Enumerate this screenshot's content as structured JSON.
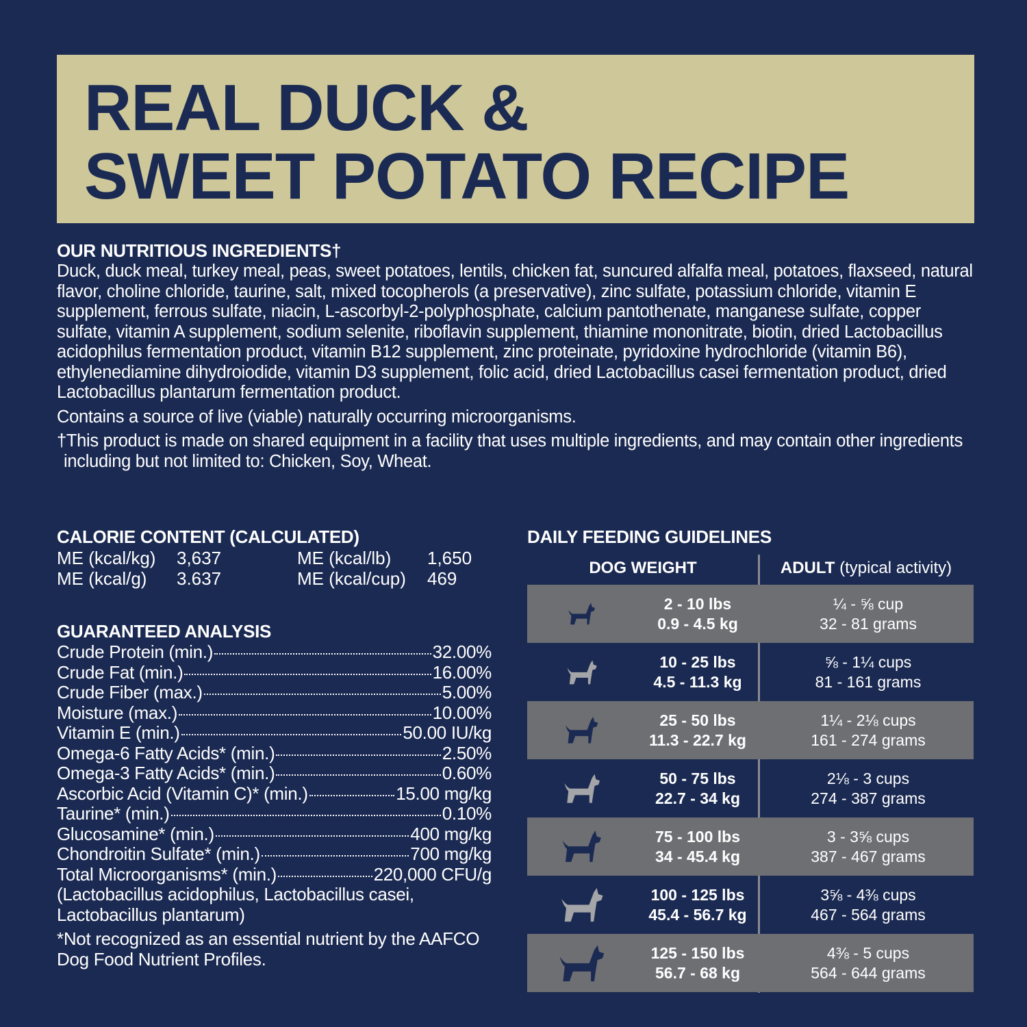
{
  "title": {
    "line1": "REAL DUCK &",
    "line2": "SWEET POTATO RECIPE"
  },
  "ingredients": {
    "heading": "OUR NUTRITIOUS INGREDIENTS†",
    "text": "Duck, duck meal, turkey meal, peas, sweet potatoes, lentils, chicken fat, suncured alfalfa meal, potatoes, flaxseed, natural flavor, choline chloride, taurine, salt, mixed tocopherols (a preservative), zinc sulfate, potassium chloride, vitamin E supplement, ferrous sulfate, niacin, L-ascorbyl-2-polyphosphate, calcium pantothenate, manganese sulfate, copper sulfate, vitamin A supplement, sodium selenite, riboflavin supplement, thiamine mononitrate, biotin, dried Lactobacillus acidophilus fermentation product, vitamin B12 supplement, zinc proteinate, pyridoxine hydrochloride (vitamin B6), ethylenediamine dihydroiodide, vitamin D3 supplement, folic acid, dried Lactobacillus casei fermentation product, dried Lactobacillus plantarum fermentation product.",
    "microorganisms": "Contains a source of live (viable) naturally occurring microorganisms.",
    "footnote": "†This product is made on shared equipment in a facility that uses multiple ingredients, and may contain other ingredients including but not limited to: Chicken, Soy, Wheat."
  },
  "calorie": {
    "heading": "CALORIE CONTENT (CALCULATED)",
    "items": [
      {
        "label": "ME (kcal/kg)",
        "value": "3,637"
      },
      {
        "label": "ME (kcal/lb)",
        "value": "1,650"
      },
      {
        "label": "ME (kcal/g)",
        "value": "3.637"
      },
      {
        "label": "ME (kcal/cup)",
        "value": "469"
      }
    ]
  },
  "analysis": {
    "heading": "GUARANTEED ANALYSIS",
    "rows": [
      {
        "label": "Crude Protein (min.)",
        "value": "32.00%"
      },
      {
        "label": "Crude Fat (min.)",
        "value": "16.00%"
      },
      {
        "label": "Crude Fiber (max.)",
        "value": "5.00%"
      },
      {
        "label": "Moisture (max.)",
        "value": "10.00%"
      },
      {
        "label": "Vitamin E (min.)",
        "value": "50.00 IU/kg"
      },
      {
        "label": "Omega-6 Fatty Acids* (min.)",
        "value": "2.50%"
      },
      {
        "label": "Omega-3 Fatty Acids* (min.)",
        "value": "0.60%"
      },
      {
        "label": "Ascorbic Acid (Vitamin C)* (min.)",
        "value": "15.00 mg/kg"
      },
      {
        "label": "Taurine* (min.)",
        "value": "0.10%"
      },
      {
        "label": "Glucosamine* (min.)",
        "value": "400 mg/kg"
      },
      {
        "label": "Chondroitin Sulfate* (min.)",
        "value": "700 mg/kg"
      },
      {
        "label": "Total Microorganisms* (min.)",
        "value": "220,000 CFU/g"
      }
    ],
    "strains": "(Lactobacillus acidophilus, Lactobacillus casei, Lactobacillus plantarum)",
    "note": "*Not recognized as an essential nutrient by the AAFCO Dog Food Nutrient Profiles."
  },
  "feeding": {
    "heading": "DAILY FEEDING GUIDELINES",
    "col1": "DOG WEIGHT",
    "col2_bold": "ADULT",
    "col2_rest": " (typical activity)",
    "rows": [
      {
        "lbs": "2 - 10 lbs",
        "kg": "0.9 - 4.5 kg",
        "cups": "¼ - ⅝ cup",
        "grams": "32 - 81 grams",
        "icon": "chihuahua-icon"
      },
      {
        "lbs": "10 - 25 lbs",
        "kg": "4.5 - 11.3 kg",
        "cups": "⅝ - 1¼  cups",
        "grams": "81 -  161 grams",
        "icon": "bulldog-icon"
      },
      {
        "lbs": "25 - 50 lbs",
        "kg": "11.3 - 22.7 kg",
        "cups": "1¼ - 2⅛ cups",
        "grams": "161 - 274 grams",
        "icon": "spitz-icon"
      },
      {
        "lbs": "50 - 75 lbs",
        "kg": "22.7 - 34 kg",
        "cups": "2⅛ - 3 cups",
        "grams": "274 - 387 grams",
        "icon": "terrier-icon"
      },
      {
        "lbs": "75 - 100 lbs",
        "kg": "34 - 45.4 kg",
        "cups": "3 - 3⅝ cups",
        "grams": "387 - 467 grams",
        "icon": "great-dane-icon"
      },
      {
        "lbs": "100 - 125 lbs",
        "kg": "45.4 - 56.7 kg",
        "cups": "3⅝ - 4⅜ cups",
        "grams": "467 - 564 grams",
        "icon": "labrador-icon"
      },
      {
        "lbs": "125 - 150 lbs",
        "kg": "56.7 - 68 kg",
        "cups": "4⅜ - 5 cups",
        "grams": "564 - 644 grams",
        "icon": "newfoundland-icon"
      }
    ]
  },
  "colors": {
    "background": "#1b2a52",
    "title_band": "#cdc799",
    "gray_row": "#6e6f73",
    "gray_icon": "#a4a5a8"
  }
}
